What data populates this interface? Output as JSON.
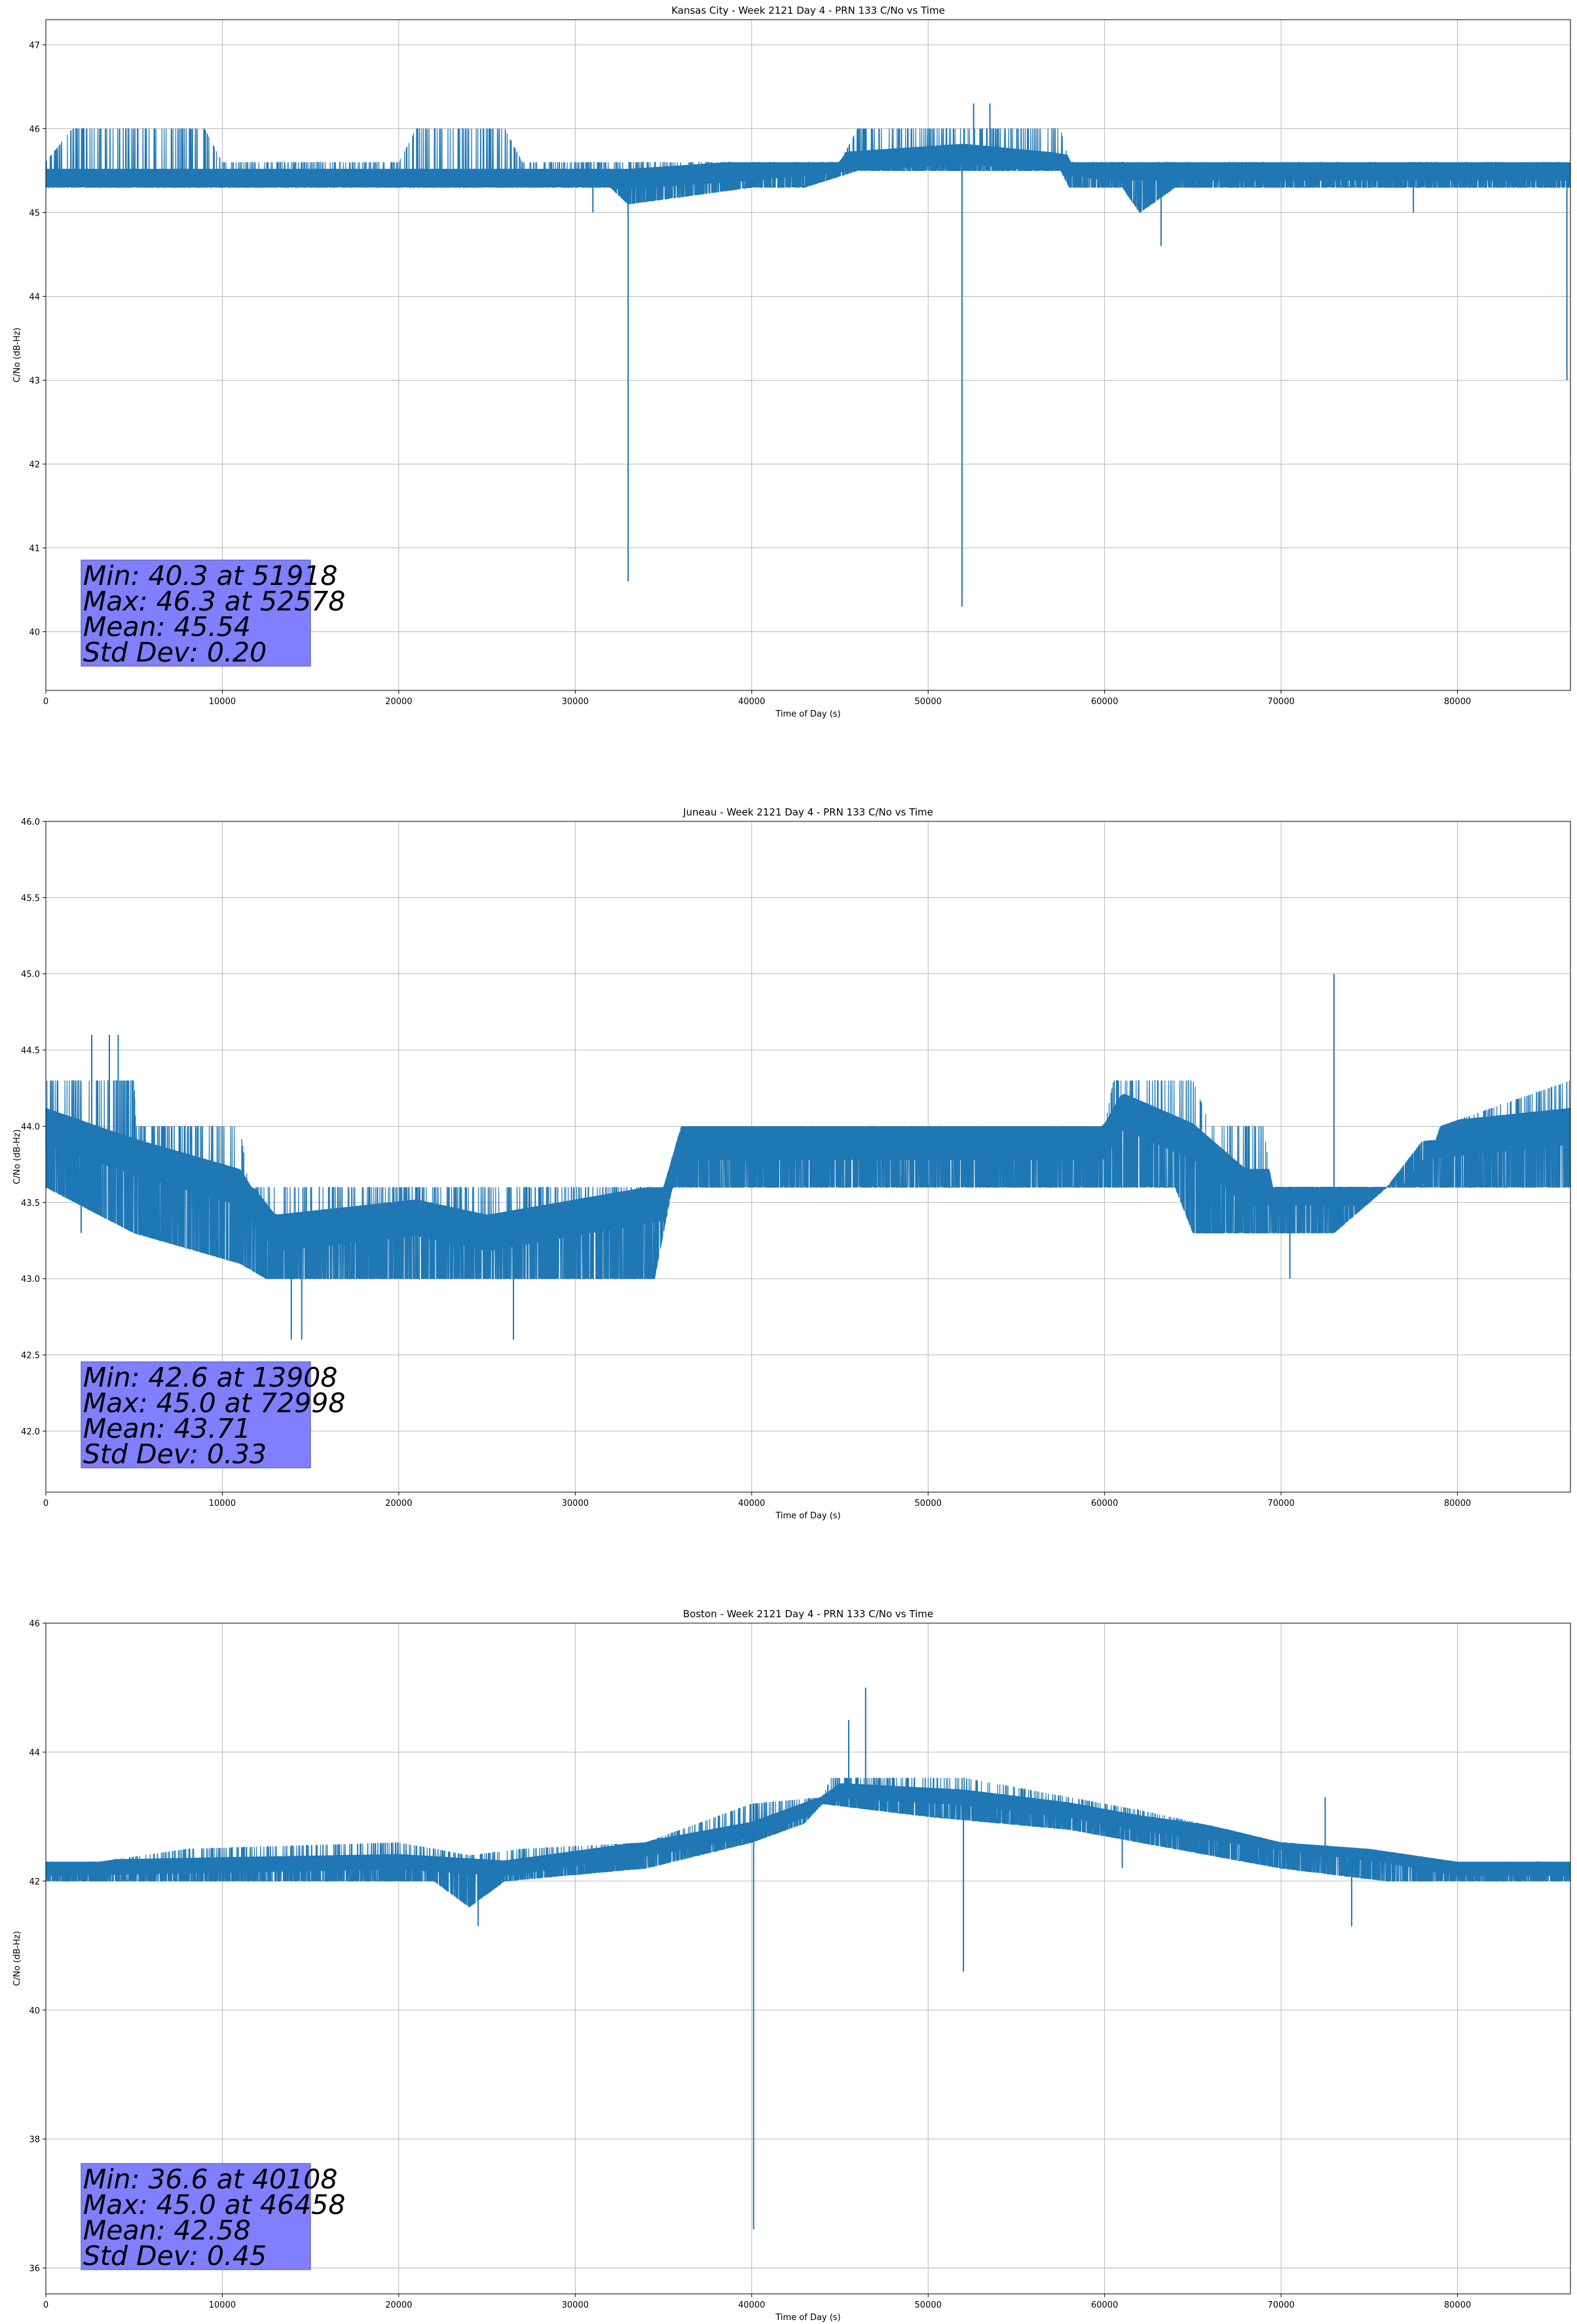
{
  "chart_data": [
    {
      "type": "line",
      "title": "Kansas City - Week 2121 Day 4 - PRN 133 C/No vs Time",
      "xlabel": "Time of Day (s)",
      "ylabel": "C/No (dB-Hz)",
      "xlim": [
        0,
        86400
      ],
      "ylim": [
        39.3,
        47.3
      ],
      "xticks": [
        0,
        10000,
        20000,
        30000,
        40000,
        50000,
        60000,
        70000,
        80000
      ],
      "yticks": [
        40,
        41,
        42,
        43,
        44,
        45,
        46,
        47
      ],
      "ytick_decimals": 0,
      "grid": true,
      "series_color": "#1f77b4",
      "baseline": [
        [
          0,
          45.4
        ],
        [
          33000,
          45.4
        ],
        [
          40000,
          45.5
        ],
        [
          45000,
          45.6
        ],
        [
          52000,
          45.7
        ],
        [
          57000,
          45.6
        ],
        [
          60000,
          45.5
        ],
        [
          86400,
          45.5
        ]
      ],
      "band_low": [
        [
          0,
          45.3
        ],
        [
          32000,
          45.3
        ],
        [
          33000,
          45.1
        ],
        [
          40000,
          45.3
        ],
        [
          43000,
          45.3
        ],
        [
          46000,
          45.5
        ],
        [
          57500,
          45.5
        ],
        [
          58000,
          45.3
        ],
        [
          61000,
          45.3
        ],
        [
          62000,
          45.0
        ],
        [
          64000,
          45.3
        ],
        [
          86400,
          45.3
        ]
      ],
      "band_high": [
        [
          0,
          45.6
        ],
        [
          1500,
          46.0
        ],
        [
          9000,
          46.0
        ],
        [
          10000,
          45.6
        ],
        [
          20000,
          45.6
        ],
        [
          21000,
          46.0
        ],
        [
          26000,
          46.0
        ],
        [
          27000,
          45.6
        ],
        [
          38000,
          45.6
        ],
        [
          45000,
          45.6
        ],
        [
          46000,
          46.0
        ],
        [
          57500,
          46.0
        ],
        [
          58000,
          45.6
        ],
        [
          86400,
          45.6
        ]
      ],
      "spikes": [
        [
          33000,
          40.6
        ],
        [
          51918,
          40.3
        ],
        [
          52578,
          46.3
        ],
        [
          53500,
          46.3
        ],
        [
          63200,
          44.6
        ],
        [
          86200,
          43.0
        ],
        [
          31000,
          45.0
        ],
        [
          77500,
          45.0
        ]
      ],
      "stats": [
        "Min: 40.3 at 51918",
        "Max: 46.3 at 52578",
        "Mean: 45.54",
        "Std Dev: 0.20"
      ]
    },
    {
      "type": "line",
      "title": "Juneau - Week 2121 Day 4 - PRN 133 C/No vs Time",
      "xlabel": "Time of Day (s)",
      "ylabel": "C/No (dB-Hz)",
      "xlim": [
        0,
        86400
      ],
      "ylim": [
        41.6,
        46.0
      ],
      "xticks": [
        0,
        10000,
        20000,
        30000,
        40000,
        50000,
        60000,
        70000,
        80000
      ],
      "yticks": [
        42.0,
        42.5,
        43.0,
        43.5,
        44.0,
        44.5,
        45.0,
        45.5,
        46.0
      ],
      "ytick_decimals": 1,
      "grid": true,
      "series_color": "#1f77b4",
      "baseline": [
        [
          0,
          44.0
        ],
        [
          5000,
          43.8
        ],
        [
          11000,
          43.6
        ],
        [
          13000,
          43.3
        ],
        [
          21000,
          43.4
        ],
        [
          25000,
          43.3
        ],
        [
          35000,
          43.5
        ],
        [
          36000,
          43.9
        ],
        [
          60000,
          43.9
        ],
        [
          61000,
          44.1
        ],
        [
          65000,
          43.9
        ],
        [
          68000,
          43.6
        ],
        [
          76000,
          43.6
        ],
        [
          78000,
          43.9
        ],
        [
          86400,
          44.0
        ]
      ],
      "band_low": [
        [
          0,
          43.6
        ],
        [
          5000,
          43.3
        ],
        [
          11000,
          43.1
        ],
        [
          12500,
          43.0
        ],
        [
          24000,
          43.0
        ],
        [
          34500,
          43.0
        ],
        [
          35500,
          43.6
        ],
        [
          64000,
          43.6
        ],
        [
          65000,
          43.3
        ],
        [
          68000,
          43.3
        ],
        [
          73000,
          43.3
        ],
        [
          76000,
          43.6
        ],
        [
          86400,
          43.6
        ]
      ],
      "band_high": [
        [
          0,
          44.3
        ],
        [
          5000,
          44.3
        ],
        [
          5100,
          44.0
        ],
        [
          11000,
          44.0
        ],
        [
          11500,
          43.6
        ],
        [
          20000,
          43.6
        ],
        [
          21000,
          43.6
        ],
        [
          35000,
          43.6
        ],
        [
          36000,
          44.0
        ],
        [
          60000,
          44.0
        ],
        [
          60500,
          44.3
        ],
        [
          65000,
          44.3
        ],
        [
          66000,
          44.0
        ],
        [
          69000,
          44.0
        ],
        [
          69500,
          43.6
        ],
        [
          78000,
          43.6
        ],
        [
          79000,
          44.0
        ],
        [
          86400,
          44.3
        ]
      ],
      "spikes": [
        [
          2600,
          44.6
        ],
        [
          3600,
          44.6
        ],
        [
          4100,
          44.6
        ],
        [
          13908,
          42.6
        ],
        [
          14500,
          42.6
        ],
        [
          26500,
          42.6
        ],
        [
          72998,
          45.0
        ],
        [
          70500,
          43.0
        ],
        [
          2000,
          43.3
        ]
      ],
      "stats": [
        "Min: 42.6 at 13908",
        "Max: 45.0 at 72998",
        "Mean: 43.71",
        "Std Dev: 0.33"
      ]
    },
    {
      "type": "line",
      "title": "Boston - Week 2121 Day 4 - PRN 133 C/No vs Time",
      "xlabel": "Time of Day (s)",
      "ylabel": "C/No (dB-Hz)",
      "xlim": [
        0,
        86400
      ],
      "ylim": [
        35.6,
        46.0
      ],
      "xticks": [
        0,
        10000,
        20000,
        30000,
        40000,
        50000,
        60000,
        70000,
        80000
      ],
      "yticks": [
        36,
        38,
        40,
        42,
        44,
        46
      ],
      "ytick_decimals": 0,
      "grid": true,
      "series_color": "#1f77b4",
      "baseline": [
        [
          0,
          42.2
        ],
        [
          20000,
          42.3
        ],
        [
          26000,
          42.2
        ],
        [
          34000,
          42.5
        ],
        [
          40000,
          42.8
        ],
        [
          44000,
          43.2
        ],
        [
          45000,
          43.4
        ],
        [
          52000,
          43.3
        ],
        [
          58000,
          43.1
        ],
        [
          62000,
          42.9
        ],
        [
          70000,
          42.6
        ],
        [
          76000,
          42.4
        ],
        [
          80000,
          42.2
        ],
        [
          86400,
          42.2
        ]
      ],
      "band_low": [
        [
          0,
          42.0
        ],
        [
          18000,
          42.0
        ],
        [
          22000,
          42.0
        ],
        [
          24000,
          41.6
        ],
        [
          26000,
          42.0
        ],
        [
          34000,
          42.2
        ],
        [
          40000,
          42.6
        ],
        [
          43000,
          42.9
        ],
        [
          44000,
          43.2
        ],
        [
          50000,
          43.0
        ],
        [
          58000,
          42.8
        ],
        [
          62000,
          42.6
        ],
        [
          70000,
          42.2
        ],
        [
          76000,
          42.0
        ],
        [
          86400,
          42.0
        ]
      ],
      "band_high": [
        [
          0,
          42.3
        ],
        [
          3000,
          42.3
        ],
        [
          8000,
          42.5
        ],
        [
          20000,
          42.6
        ],
        [
          24000,
          42.4
        ],
        [
          27000,
          42.5
        ],
        [
          34000,
          42.6
        ],
        [
          38000,
          43.0
        ],
        [
          40000,
          43.2
        ],
        [
          44000,
          43.3
        ],
        [
          44500,
          43.6
        ],
        [
          52000,
          43.6
        ],
        [
          58000,
          43.3
        ],
        [
          62000,
          43.1
        ],
        [
          67000,
          42.8
        ],
        [
          70000,
          42.6
        ],
        [
          75000,
          42.5
        ],
        [
          80000,
          42.3
        ],
        [
          86400,
          42.3
        ]
      ],
      "spikes": [
        [
          40108,
          36.6
        ],
        [
          46458,
          45.0
        ],
        [
          45500,
          44.5
        ],
        [
          52000,
          40.6
        ],
        [
          74000,
          41.3
        ],
        [
          24500,
          41.3
        ],
        [
          72500,
          43.3
        ],
        [
          61000,
          42.2
        ]
      ],
      "stats": [
        "Min: 36.6 at 40108",
        "Max: 45.0 at 46458",
        "Mean: 42.58",
        "Std Dev: 0.45"
      ]
    }
  ]
}
